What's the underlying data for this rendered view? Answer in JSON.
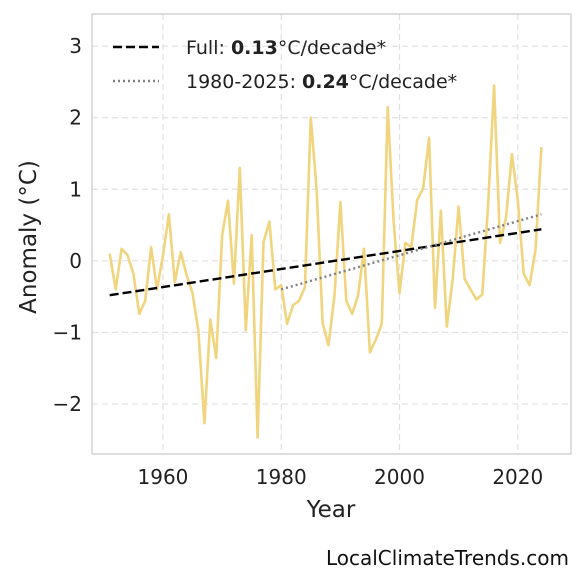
{
  "chart_data": {
    "type": "line",
    "xlabel": "Year",
    "ylabel": "Anomaly (°C)",
    "xlim": [
      1948,
      2029
    ],
    "ylim": [
      -2.7,
      3.45
    ],
    "grid": true,
    "legend_position": "top-left",
    "x_ticks": [
      {
        "value": 1960,
        "label": "1960"
      },
      {
        "value": 1980,
        "label": "1980"
      },
      {
        "value": 2000,
        "label": "2000"
      },
      {
        "value": 2020,
        "label": "2020"
      }
    ],
    "y_ticks": [
      {
        "value": -2,
        "label": "−2"
      },
      {
        "value": -1,
        "label": "−1"
      },
      {
        "value": 0,
        "label": "0"
      },
      {
        "value": 1,
        "label": "1"
      },
      {
        "value": 2,
        "label": "2"
      },
      {
        "value": 3,
        "label": "3"
      }
    ],
    "series": [
      {
        "style": "solid",
        "color": "#f0d57e",
        "x": [
          1951,
          1952,
          1953,
          1954,
          1955,
          1956,
          1957,
          1958,
          1959,
          1960,
          1961,
          1962,
          1963,
          1964,
          1965,
          1966,
          1967,
          1968,
          1969,
          1970,
          1971,
          1972,
          1973,
          1974,
          1975,
          1976,
          1977,
          1978,
          1979,
          1980,
          1981,
          1982,
          1983,
          1984,
          1985,
          1986,
          1987,
          1988,
          1989,
          1990,
          1991,
          1992,
          1993,
          1994,
          1995,
          1996,
          1997,
          1998,
          1999,
          2000,
          2001,
          2002,
          2003,
          2004,
          2005,
          2006,
          2007,
          2008,
          2009,
          2010,
          2011,
          2012,
          2013,
          2014,
          2015,
          2016,
          2017,
          2018,
          2019,
          2020,
          2021,
          2022,
          2023,
          2024
        ],
        "values": [
          0.1,
          -0.4,
          0.17,
          0.08,
          -0.18,
          -0.74,
          -0.56,
          0.19,
          -0.4,
          0.08,
          0.65,
          -0.3,
          0.12,
          -0.2,
          -0.45,
          -0.98,
          -2.27,
          -0.82,
          -1.36,
          0.35,
          0.84,
          -0.32,
          1.3,
          -0.97,
          0.36,
          -2.47,
          0.26,
          0.55,
          -0.4,
          -0.34,
          -0.88,
          -0.62,
          -0.56,
          -0.37,
          2.0,
          0.98,
          -0.87,
          -1.18,
          -0.48,
          0.82,
          -0.56,
          -0.74,
          -0.48,
          0.17,
          -1.28,
          -1.1,
          -0.88,
          2.15,
          0.55,
          -0.45,
          0.25,
          0.19,
          0.85,
          1.02,
          1.72,
          -0.66,
          0.7,
          -0.92,
          -0.26,
          0.76,
          -0.25,
          -0.4,
          -0.54,
          -0.47,
          0.8,
          2.45,
          0.25,
          0.6,
          1.49,
          0.85,
          -0.18,
          -0.34,
          0.15,
          1.59
        ]
      },
      {
        "name": "Full: ",
        "rate": "0.13",
        "unit": "°C/decade*",
        "style": "dashed",
        "color": "#000000",
        "x": [
          1951,
          2024
        ],
        "values": [
          -0.48,
          0.44
        ]
      },
      {
        "name": "1980-2025: ",
        "rate": "0.24",
        "unit": "°C/decade*",
        "style": "dotted",
        "color": "#808080",
        "x": [
          1980,
          2024
        ],
        "values": [
          -0.4,
          0.65
        ]
      }
    ]
  },
  "credit": "LocalClimateTrends.com"
}
